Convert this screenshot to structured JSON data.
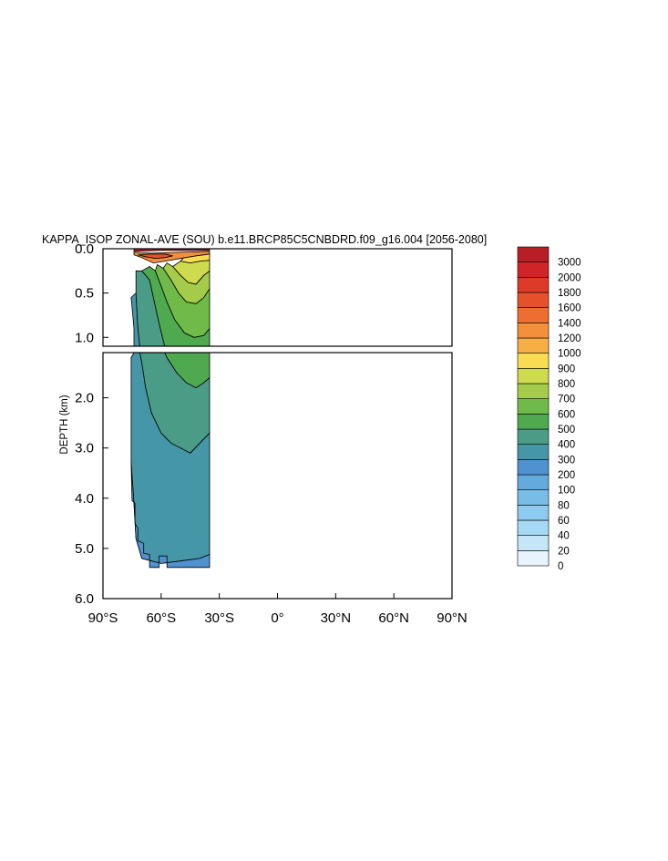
{
  "chart_data": {
    "type": "heatmap",
    "title": "KAPPA_ISOP ZONAL-AVE (SOU) b.e11.BRCP85C5CNBDRD.f09_g16.004 [2056-2080]",
    "ylabel": "DEPTH (km)",
    "xlabel": "",
    "x_range": [
      -90,
      90
    ],
    "x_ticks": [
      {
        "value": -90,
        "label": "90°S"
      },
      {
        "value": -60,
        "label": "60°S"
      },
      {
        "value": -30,
        "label": "30°S"
      },
      {
        "value": 0,
        "label": "0°"
      },
      {
        "value": 30,
        "label": "30°N"
      },
      {
        "value": 60,
        "label": "60°N"
      },
      {
        "value": 90,
        "label": "90°N"
      }
    ],
    "upper_panel": {
      "y_range": [
        0,
        1.1
      ],
      "y_ticks": [
        {
          "value": 0.0,
          "label": "0.0"
        },
        {
          "value": 0.5,
          "label": "0.5"
        },
        {
          "value": 1.0,
          "label": "1.0"
        }
      ]
    },
    "lower_panel": {
      "y_range": [
        1.1,
        6.0
      ],
      "y_ticks": [
        {
          "value": 2.0,
          "label": "2.0"
        },
        {
          "value": 3.0,
          "label": "3.0"
        },
        {
          "value": 4.0,
          "label": "4.0"
        },
        {
          "value": 5.0,
          "label": "5.0"
        },
        {
          "value": 6.0,
          "label": "6.0"
        }
      ]
    },
    "colorbar": {
      "labels": [
        "0",
        "20",
        "40",
        "60",
        "80",
        "100",
        "200",
        "300",
        "400",
        "500",
        "600",
        "700",
        "800",
        "900",
        "1000",
        "1200",
        "1400",
        "1600",
        "1800",
        "2000",
        "3000"
      ],
      "colors": [
        "#e8f4fb",
        "#c4e6f7",
        "#a6d9f3",
        "#8ccbee",
        "#78bde6",
        "#65aadc",
        "#4f92cf",
        "#4596a7",
        "#4b9c86",
        "#4ea94f",
        "#70ba4a",
        "#a4cc4a",
        "#cfdb4f",
        "#f8dc52",
        "#f7ae45",
        "#f48f3b",
        "#ee6e32",
        "#e5512b",
        "#dc3b2a",
        "#d02428",
        "#b81e26"
      ]
    },
    "data_regions": [
      {
        "level": "200-300",
        "poly": [
          [
            -75.5,
            0.55
          ],
          [
            -74,
            0.9
          ],
          [
            -74,
            1.1
          ],
          [
            -75.5,
            1.2
          ],
          [
            -75.5,
            3.3
          ],
          [
            -74,
            4.1
          ],
          [
            -73,
            4.8
          ],
          [
            -70,
            5.2
          ],
          [
            -60,
            5.3
          ],
          [
            -50,
            5.25
          ],
          [
            -40,
            5.2
          ],
          [
            -35,
            5.12
          ],
          [
            -35,
            2.7
          ],
          [
            -40,
            2.9
          ],
          [
            -45,
            3.1
          ],
          [
            -50,
            3.0
          ],
          [
            -55,
            2.9
          ],
          [
            -60,
            2.7
          ],
          [
            -65,
            2.3
          ],
          [
            -68,
            1.8
          ],
          [
            -70,
            1.3
          ],
          [
            -72,
            0.9
          ],
          [
            -73,
            0.5
          ]
        ]
      },
      {
        "level": "300-400",
        "poly": [
          [
            -73,
            0.5
          ],
          [
            -72,
            0.9
          ],
          [
            -70,
            1.3
          ],
          [
            -68,
            1.8
          ],
          [
            -65,
            2.3
          ],
          [
            -60,
            2.7
          ],
          [
            -55,
            2.9
          ],
          [
            -50,
            3.0
          ],
          [
            -45,
            3.1
          ],
          [
            -40,
            2.9
          ],
          [
            -35,
            2.7
          ],
          [
            -35,
            1.6
          ],
          [
            -38,
            1.7
          ],
          [
            -42,
            1.8
          ],
          [
            -47,
            1.7
          ],
          [
            -52,
            1.5
          ],
          [
            -57,
            1.2
          ],
          [
            -61,
            0.85
          ],
          [
            -64,
            0.55
          ],
          [
            -66,
            0.35
          ],
          [
            -70,
            0.25
          ],
          [
            -73,
            0.25
          ]
        ]
      },
      {
        "level": "400-500",
        "poly": [
          [
            -70,
            0.25
          ],
          [
            -66,
            0.35
          ],
          [
            -64,
            0.55
          ],
          [
            -61,
            0.85
          ],
          [
            -57,
            1.2
          ],
          [
            -52,
            1.5
          ],
          [
            -47,
            1.7
          ],
          [
            -42,
            1.8
          ],
          [
            -38,
            1.7
          ],
          [
            -35,
            1.6
          ],
          [
            -35,
            0.9
          ],
          [
            -38,
            0.98
          ],
          [
            -43,
            1.0
          ],
          [
            -48,
            0.95
          ],
          [
            -53,
            0.8
          ],
          [
            -57,
            0.6
          ],
          [
            -60,
            0.42
          ],
          [
            -63,
            0.25
          ],
          [
            -66,
            0.2
          ]
        ]
      },
      {
        "level": "500-600",
        "poly": [
          [
            -63,
            0.25
          ],
          [
            -60,
            0.42
          ],
          [
            -57,
            0.6
          ],
          [
            -53,
            0.8
          ],
          [
            -48,
            0.95
          ],
          [
            -43,
            1.0
          ],
          [
            -38,
            0.98
          ],
          [
            -35,
            0.9
          ],
          [
            -35,
            0.45
          ],
          [
            -38,
            0.55
          ],
          [
            -42,
            0.62
          ],
          [
            -47,
            0.6
          ],
          [
            -51,
            0.5
          ],
          [
            -55,
            0.35
          ],
          [
            -59,
            0.22
          ],
          [
            -62,
            0.18
          ]
        ]
      },
      {
        "level": "600-700",
        "poly": [
          [
            -59,
            0.22
          ],
          [
            -55,
            0.35
          ],
          [
            -51,
            0.5
          ],
          [
            -47,
            0.6
          ],
          [
            -42,
            0.62
          ],
          [
            -38,
            0.55
          ],
          [
            -35,
            0.45
          ],
          [
            -35,
            0.25
          ],
          [
            -38,
            0.3
          ],
          [
            -42,
            0.4
          ],
          [
            -46,
            0.38
          ],
          [
            -50,
            0.3
          ],
          [
            -54,
            0.2
          ],
          [
            -57,
            0.16
          ]
        ]
      },
      {
        "level": "700-800",
        "poly": [
          [
            -54,
            0.2
          ],
          [
            -50,
            0.3
          ],
          [
            -46,
            0.38
          ],
          [
            -42,
            0.4
          ],
          [
            -38,
            0.3
          ],
          [
            -35,
            0.25
          ],
          [
            -35,
            0.13
          ],
          [
            -40,
            0.14
          ],
          [
            -45,
            0.16
          ],
          [
            -50,
            0.14
          ]
        ]
      },
      {
        "level": "800-900",
        "poly": [
          [
            -50,
            0.14
          ],
          [
            -45,
            0.16
          ],
          [
            -40,
            0.14
          ],
          [
            -35,
            0.13
          ],
          [
            -35,
            0.06
          ],
          [
            -42,
            0.08
          ],
          [
            -48,
            0.09
          ]
        ]
      },
      {
        "level": "1000-1200",
        "poly": [
          [
            -74,
            0.07
          ],
          [
            -70,
            0.1
          ],
          [
            -64,
            0.16
          ],
          [
            -58,
            0.14
          ],
          [
            -50,
            0.11
          ],
          [
            -42,
            0.08
          ],
          [
            -35,
            0.06
          ],
          [
            -35,
            0.03
          ],
          [
            -50,
            0.04
          ],
          [
            -65,
            0.05
          ],
          [
            -74,
            0.04
          ]
        ]
      },
      {
        "level": "1400-1600",
        "poly": [
          [
            -72,
            0.07
          ],
          [
            -68,
            0.09
          ],
          [
            -63,
            0.11
          ],
          [
            -58,
            0.1
          ],
          [
            -54,
            0.08
          ],
          [
            -58,
            0.06
          ],
          [
            -66,
            0.06
          ]
        ]
      },
      {
        "level": "2000-3000",
        "poly": [
          [
            -74,
            0.03
          ],
          [
            -60,
            0.02
          ],
          [
            -45,
            0.02
          ],
          [
            -35,
            0.02
          ],
          [
            -35,
            0.0
          ],
          [
            -74,
            0.0
          ]
        ]
      },
      {
        "level": "100-200",
        "poly": [
          [
            -75.5,
            3.3
          ],
          [
            -75,
            4.05
          ],
          [
            -73.5,
            4.1
          ],
          [
            -73.5,
            4.5
          ],
          [
            -72,
            4.6
          ],
          [
            -72,
            4.85
          ],
          [
            -69,
            4.9
          ],
          [
            -69,
            5.1
          ],
          [
            -66,
            5.12
          ],
          [
            -66,
            5.38
          ],
          [
            -61,
            5.38
          ],
          [
            -61,
            5.15
          ],
          [
            -57,
            5.15
          ],
          [
            -57,
            5.38
          ],
          [
            -35,
            5.38
          ],
          [
            -35,
            5.12
          ],
          [
            -40,
            5.2
          ],
          [
            -50,
            5.25
          ],
          [
            -60,
            5.3
          ],
          [
            -70,
            5.2
          ],
          [
            -73,
            4.8
          ],
          [
            -74,
            4.1
          ]
        ]
      }
    ]
  }
}
